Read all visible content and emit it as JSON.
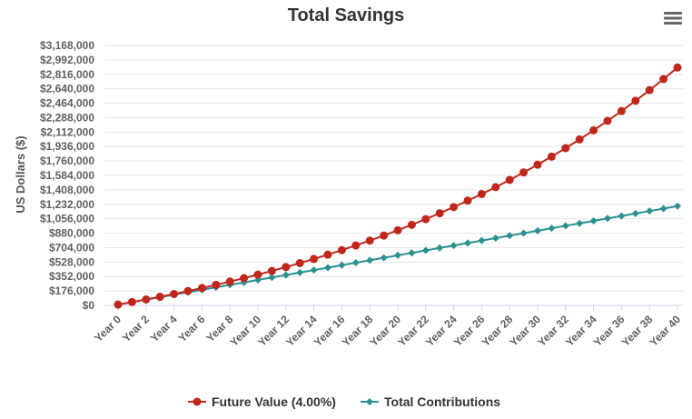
{
  "chart_data": {
    "type": "line",
    "title": "Total Savings",
    "ylabel": "US Dollars ($)",
    "ylim": [
      0,
      3168000
    ],
    "yticks": [
      0,
      176000,
      352000,
      528000,
      704000,
      880000,
      1056000,
      1232000,
      1408000,
      1584000,
      1760000,
      1936000,
      2112000,
      2288000,
      2464000,
      2640000,
      2816000,
      2992000,
      3168000
    ],
    "ytick_labels": [
      "$0",
      "$176,000",
      "$352,000",
      "$528,000",
      "$704,000",
      "$880,000",
      "$1,056,000",
      "$1,232,000",
      "$1,408,000",
      "$1,584,000",
      "$1,760,000",
      "$1,936,000",
      "$2,112,000",
      "$2,288,000",
      "$2,464,000",
      "$2,640,000",
      "$2,816,000",
      "$2,992,000",
      "$3,168,000"
    ],
    "x": [
      0,
      1,
      2,
      3,
      4,
      5,
      6,
      7,
      8,
      9,
      10,
      11,
      12,
      13,
      14,
      15,
      16,
      17,
      18,
      19,
      20,
      21,
      22,
      23,
      24,
      25,
      26,
      27,
      28,
      29,
      30,
      31,
      32,
      33,
      34,
      35,
      36,
      37,
      38,
      39,
      40
    ],
    "xtick_labels": [
      "Year 0",
      "Year 2",
      "Year 4",
      "Year 6",
      "Year 8",
      "Year 10",
      "Year 12",
      "Year 14",
      "Year 16",
      "Year 18",
      "Year 20",
      "Year 22",
      "Year 24",
      "Year 26",
      "Year 28",
      "Year 30",
      "Year 32",
      "Year 34",
      "Year 36",
      "Year 38",
      "Year 40"
    ],
    "xtick_values": [
      0,
      2,
      4,
      6,
      8,
      10,
      12,
      14,
      16,
      18,
      20,
      22,
      24,
      26,
      28,
      30,
      32,
      34,
      36,
      38,
      40
    ],
    "grid": true,
    "legend_position": "bottom-center",
    "series": [
      {
        "name": "Future Value (4.00%)",
        "color": "#c0271c",
        "marker": "circle",
        "values": [
          10000,
          40400,
          72016,
          104897,
          139093,
          174656,
          211643,
          250108,
          290113,
          331717,
          374986,
          419985,
          466785,
          515456,
          566075,
          618718,
          673466,
          730405,
          789621,
          851206,
          915254,
          981864,
          1051139,
          1123184,
          1198112,
          1276036,
          1357078,
          1441361,
          1529015,
          1620176,
          1714983,
          1813582,
          1916125,
          2022770,
          2133681,
          2249028,
          2368989,
          2493749,
          2623499,
          2758439,
          2898776
        ]
      },
      {
        "name": "Total Contributions",
        "color": "#2a9090",
        "marker": "diamond",
        "values": [
          10000,
          40000,
          70000,
          100000,
          130000,
          160000,
          190000,
          220000,
          250000,
          280000,
          310000,
          340000,
          370000,
          400000,
          430000,
          460000,
          490000,
          520000,
          550000,
          580000,
          610000,
          640000,
          670000,
          700000,
          730000,
          760000,
          790000,
          820000,
          850000,
          880000,
          910000,
          940000,
          970000,
          1000000,
          1030000,
          1060000,
          1090000,
          1120000,
          1150000,
          1180000,
          1210000
        ]
      }
    ]
  },
  "menu": {
    "icon": "hamburger-menu-icon"
  }
}
